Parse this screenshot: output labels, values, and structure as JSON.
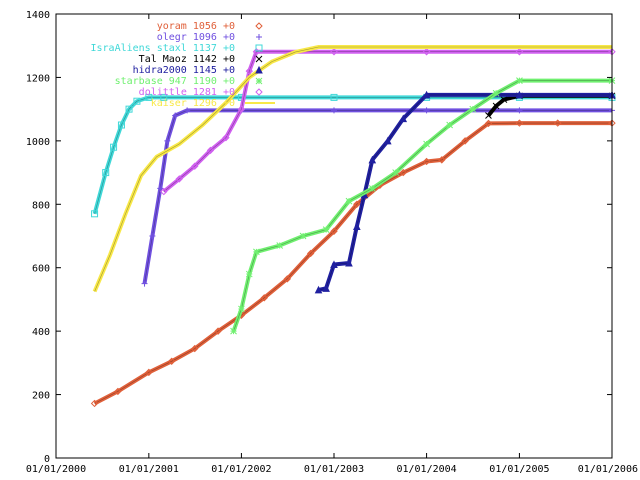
{
  "chart_data": {
    "type": "line",
    "title": "",
    "xlabel": "",
    "ylabel": "",
    "xlim": [
      "01/01/2000",
      "01/01/2006"
    ],
    "ylim": [
      0,
      1400
    ],
    "grid": false,
    "legend_position": "top-center",
    "yticks": [
      0,
      200,
      400,
      600,
      800,
      1000,
      1200,
      1400
    ],
    "xticks": [
      "01/01/2000",
      "01/01/2001",
      "01/01/2002",
      "01/01/2003",
      "01/01/2004",
      "01/01/2005",
      "01/01/2006"
    ],
    "series": [
      {
        "name": "yoram 1056 +0",
        "color": "#e0603a",
        "marker": "diamond",
        "x": [
          "2000-06-01",
          "2000-09-01",
          "2001-01-01",
          "2001-04-01",
          "2001-07-01",
          "2001-10-01",
          "2002-01-01",
          "2002-04-01",
          "2002-07-01",
          "2002-10-01",
          "2003-01-01",
          "2003-04-01",
          "2003-07-01",
          "2003-10-01",
          "2004-01-01",
          "2004-03-01",
          "2004-06-01",
          "2004-09-01",
          "2005-01-01",
          "2005-06-01",
          "2006-01-01"
        ],
        "y": [
          172,
          210,
          270,
          305,
          345,
          400,
          450,
          505,
          565,
          645,
          715,
          800,
          860,
          900,
          935,
          940,
          1000,
          1055,
          1056,
          1056,
          1056
        ]
      },
      {
        "name": "olegr 1096 +0",
        "color": "#7050e0",
        "marker": "plus",
        "x": [
          "2000-12-15",
          "2001-01-15",
          "2001-02-15",
          "2001-03-15",
          "2001-04-15",
          "2001-06-01",
          "2002-01-01",
          "2003-01-01",
          "2004-01-01",
          "2005-01-01",
          "2006-01-01"
        ],
        "y": [
          550,
          700,
          850,
          1000,
          1080,
          1096,
          1096,
          1096,
          1096,
          1096,
          1096
        ]
      },
      {
        "name": "IsraAliens staxl 1137 +0",
        "color": "#40d8d8",
        "marker": "square",
        "x": [
          "2000-06-01",
          "2000-07-15",
          "2000-08-15",
          "2000-09-15",
          "2000-10-15",
          "2000-11-15",
          "2001-01-01",
          "2001-03-01",
          "2002-01-01",
          "2003-01-01",
          "2004-01-01",
          "2005-01-01",
          "2006-01-01"
        ],
        "y": [
          770,
          900,
          980,
          1050,
          1100,
          1125,
          1137,
          1137,
          1137,
          1137,
          1137,
          1137,
          1137
        ]
      },
      {
        "name": "Tal Maoz 1142 +0",
        "color": "#000000",
        "marker": "cross",
        "x": [
          "2004-09-01",
          "2004-10-01",
          "2004-11-01",
          "2005-01-01",
          "2006-01-01"
        ],
        "y": [
          1080,
          1110,
          1130,
          1142,
          1142
        ]
      },
      {
        "name": "hidra2000 1145 +0",
        "color": "#2020a0",
        "marker": "triangle",
        "x": [
          "2002-11-01",
          "2002-12-01",
          "2003-01-01",
          "2003-03-01",
          "2003-04-01",
          "2003-05-01",
          "2003-06-01",
          "2003-08-01",
          "2003-10-01",
          "2004-01-01",
          "2005-01-01",
          "2006-01-01"
        ],
        "y": [
          530,
          535,
          610,
          615,
          730,
          830,
          940,
          1000,
          1070,
          1145,
          1145,
          1145
        ]
      },
      {
        "name": "starbase 947 1190 +0",
        "color": "#70f070",
        "marker": "star",
        "x": [
          "2001-12-01",
          "2002-01-01",
          "2002-02-01",
          "2002-03-01",
          "2002-06-01",
          "2002-09-01",
          "2002-12-01",
          "2003-03-01",
          "2003-06-01",
          "2003-09-01",
          "2004-01-01",
          "2004-04-01",
          "2004-07-01",
          "2004-10-01",
          "2005-01-01",
          "2006-01-01"
        ],
        "y": [
          400,
          470,
          580,
          650,
          670,
          700,
          720,
          810,
          850,
          900,
          990,
          1050,
          1100,
          1150,
          1190,
          1190
        ]
      },
      {
        "name": "dolittle 1281 +0",
        "color": "#d060f0",
        "marker": "diamond",
        "x": [
          "2001-03-01",
          "2001-05-01",
          "2001-07-01",
          "2001-09-01",
          "2001-11-01",
          "2002-01-01",
          "2002-02-01",
          "2002-03-01",
          "2003-01-01",
          "2004-01-01",
          "2005-01-01",
          "2006-01-01"
        ],
        "y": [
          840,
          880,
          920,
          970,
          1010,
          1100,
          1220,
          1281,
          1281,
          1281,
          1281,
          1281
        ]
      },
      {
        "name": "kaiser 1296 +0",
        "color": "#f8e848",
        "marker": "line",
        "x": [
          "2000-06-01",
          "2000-08-01",
          "2000-10-01",
          "2000-12-01",
          "2001-02-01",
          "2001-05-01",
          "2001-08-01",
          "2001-11-01",
          "2002-02-01",
          "2002-05-01",
          "2002-08-01",
          "2002-11-01",
          "2003-01-01",
          "2004-01-01",
          "2005-01-01",
          "2006-01-01"
        ],
        "y": [
          525,
          640,
          770,
          890,
          950,
          990,
          1050,
          1120,
          1200,
          1250,
          1280,
          1296,
          1296,
          1296,
          1296,
          1296
        ]
      }
    ]
  }
}
